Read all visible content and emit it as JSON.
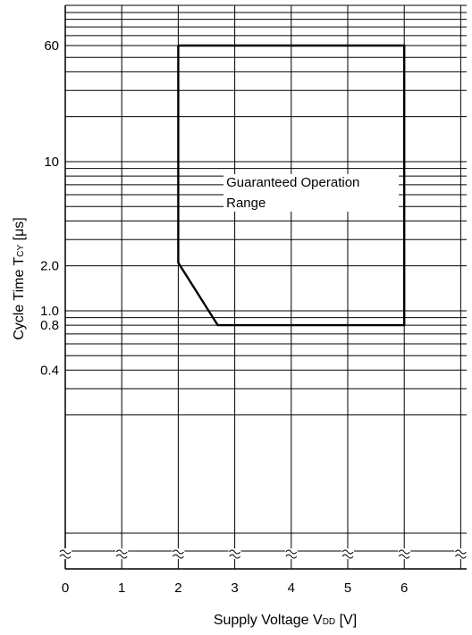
{
  "chart_data": {
    "type": "line",
    "xlabel": {
      "main": "Supply Voltage  V",
      "sub": "DD",
      "unit": " [V]"
    },
    "ylabel": {
      "main": "Cycle Time  T",
      "sub": "CY",
      "unit": " [μs]"
    },
    "x_scale": "linear",
    "y_scale": "log",
    "xlim": [
      0,
      7
    ],
    "ylim": [
      0.2,
      100
    ],
    "x_ticks": [
      0,
      1,
      2,
      3,
      4,
      5,
      6
    ],
    "y_tick_labels": [
      {
        "value": 60,
        "label": "60"
      },
      {
        "value": 10,
        "label": "10"
      },
      {
        "value": 2.0,
        "label": "2.0"
      },
      {
        "value": 1.0,
        "label": "1.0"
      },
      {
        "value": 0.8,
        "label": "0.8"
      },
      {
        "value": 0.4,
        "label": "0.4"
      }
    ],
    "y_gridlines": [
      100,
      90,
      80,
      70,
      60,
      50,
      40,
      30,
      20,
      10,
      9,
      8,
      7,
      6,
      5,
      4,
      3,
      2,
      1,
      0.9,
      0.8,
      0.7,
      0.6,
      0.5,
      0.4,
      0.3,
      0.2
    ],
    "grid": true,
    "axis_break": "bottom",
    "series": [
      {
        "values": [
          {
            "x": 2.0,
            "y": 60
          },
          {
            "x": 6.0,
            "y": 60
          },
          {
            "x": 6.0,
            "y": 0.8
          },
          {
            "x": 2.7,
            "y": 0.8
          },
          {
            "x": 2.0,
            "y": 2.1
          },
          {
            "x": 2.0,
            "y": 60
          }
        ]
      }
    ],
    "annotation": {
      "lines": [
        "Guaranteed Operation",
        "Range"
      ],
      "x": 2.85,
      "y": 6.8
    }
  }
}
